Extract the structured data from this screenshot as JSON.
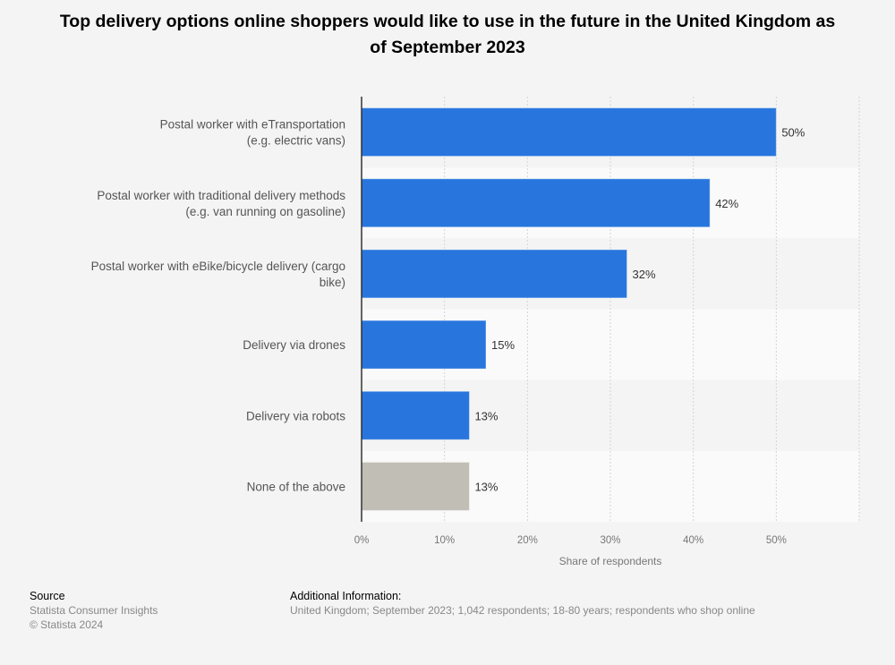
{
  "chart_data": {
    "type": "bar",
    "orientation": "horizontal",
    "title": "Top delivery options online shoppers would like to use in the future in the United Kingdom as of September 2023",
    "categories": [
      "Postal worker with eTransportation\n(e.g. electric vans)",
      "Postal worker with traditional delivery methods\n(e.g. van running on gasoline)",
      "Postal worker with eBike/bicycle delivery (cargo\nbike)",
      "Delivery via drones",
      "Delivery via robots",
      "None of the above"
    ],
    "values": [
      50,
      42,
      32,
      15,
      13,
      13
    ],
    "data_labels": [
      "50%",
      "42%",
      "32%",
      "15%",
      "13%",
      "13%"
    ],
    "colors": [
      "#2876dd",
      "#2876dd",
      "#2876dd",
      "#2876dd",
      "#2876dd",
      "#c1bfb5"
    ],
    "xlabel": "Share of respondents",
    "ylabel": "",
    "xlim": [
      0,
      60
    ],
    "xticks": [
      0,
      10,
      20,
      30,
      40,
      50
    ],
    "xtick_labels": [
      "0%",
      "10%",
      "20%",
      "30%",
      "40%",
      "50%"
    ],
    "grid": true
  },
  "footer": {
    "source_heading": "Source",
    "source_lines": [
      "Statista Consumer Insights",
      "© Statista 2024"
    ],
    "info_heading": "Additional Information:",
    "info_text": "United Kingdom; September 2023; 1,042 respondents; 18-80 years; respondents who shop online"
  }
}
